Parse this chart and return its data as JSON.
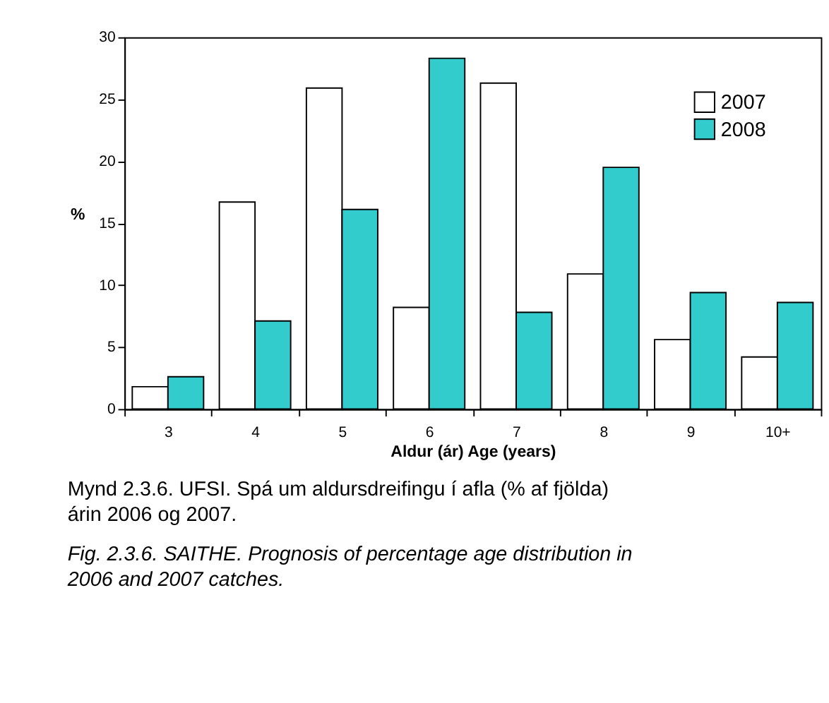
{
  "chart_data": {
    "type": "bar",
    "xlabel": "Aldur (ár) Age (years)",
    "ylabel": "%",
    "categories": [
      "3",
      "4",
      "5",
      "6",
      "7",
      "8",
      "9",
      "10+"
    ],
    "series": [
      {
        "name": "2007",
        "color": "#ffffff",
        "values": [
          1.8,
          16.7,
          25.9,
          8.2,
          26.3,
          10.9,
          5.6,
          4.2
        ]
      },
      {
        "name": "2008",
        "color": "#33cccc",
        "values": [
          2.6,
          7.1,
          16.1,
          28.3,
          7.8,
          19.5,
          9.4,
          8.6
        ]
      }
    ],
    "ylim": [
      0,
      30
    ],
    "yticks": [
      0,
      5,
      10,
      15,
      20,
      25,
      30
    ],
    "grid": false,
    "legend": "top right",
    "annotations": [
      "Mynd 2.3.6. UFSI. Spá um aldursdreifingu í afla (% af fjölda) árin 2006 og 2007.",
      "Fig. 2.3.6. SAITHE. Prognosis of percentage age distribution in 2006 and 2007 catches."
    ]
  }
}
